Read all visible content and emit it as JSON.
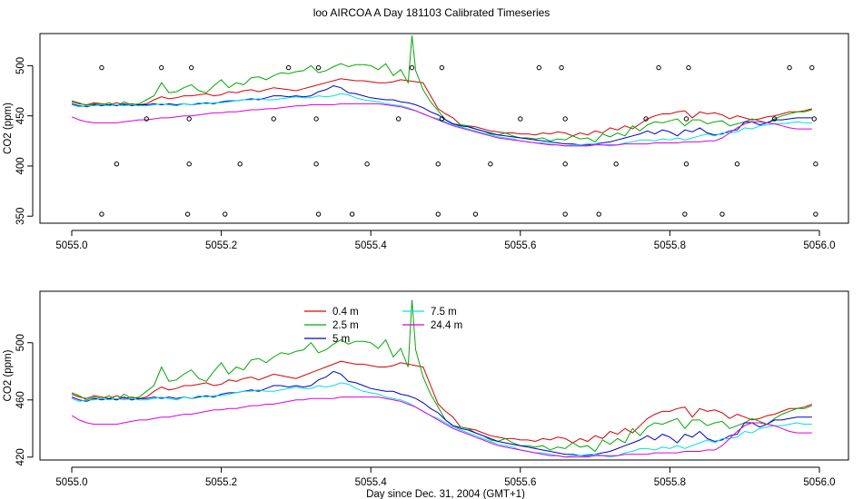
{
  "title": "loo AIRCOA A  Day 181103  Calibrated Timeseries",
  "colors": {
    "0.4 m": "#dd0000",
    "2.5 m": "#00aa00",
    "5 m": "#0000cc",
    "7.5 m": "#00e0e0",
    "24.4 m": "#dd00dd",
    "points": "#000000"
  },
  "chart_data": [
    {
      "type": "line",
      "xlabel": "Day since Dec. 31, 2004 (GMT+1)",
      "ylabel": "CO2 (ppm)",
      "xlim": [
        4999.96,
        5056.03
      ],
      "ylim": [
        343,
        532
      ],
      "xticks": [
        5055.0,
        5055.2,
        5055.4,
        5055.6,
        5055.8,
        5056.0
      ],
      "xtick_labels": [
        "5055.0",
        "5055.2",
        "5055.4",
        "5055.6",
        "5055.8",
        "5056.0"
      ],
      "yticks": [
        350,
        400,
        450,
        500
      ],
      "ytick_labels": [
        "350",
        "400",
        "450",
        "500"
      ],
      "grid": false,
      "legend": "none",
      "series_source": "shared",
      "points": {
        "x": [
          5055.04,
          5055.12,
          5055.16,
          5055.29,
          5055.33,
          5055.455,
          5055.495,
          5055.625,
          5055.655,
          5055.785,
          5055.825,
          5055.96,
          5055.99,
          5055.06,
          5055.157,
          5055.225,
          5055.327,
          5055.395,
          5055.49,
          5055.56,
          5055.66,
          5055.728,
          5055.822,
          5055.89,
          5055.995,
          5055.1,
          5055.157,
          5055.27,
          5055.327,
          5055.437,
          5055.495,
          5055.6,
          5055.66,
          5055.768,
          5055.822,
          5055.94,
          5055.993,
          5055.04,
          5055.155,
          5055.205,
          5055.33,
          5055.375,
          5055.49,
          5055.54,
          5055.66,
          5055.705,
          5055.82,
          5055.87,
          5055.995
        ],
        "y": [
          498,
          498,
          498,
          498,
          498,
          498,
          498,
          498,
          498,
          498,
          498,
          498,
          498,
          402,
          402,
          402,
          402,
          402,
          402,
          402,
          402,
          402,
          402,
          402,
          402,
          447,
          447,
          447,
          447,
          447,
          447,
          447,
          447,
          447,
          447,
          447,
          447,
          352,
          352,
          352,
          352,
          352,
          352,
          352,
          352,
          352,
          352,
          352,
          352
        ]
      }
    },
    {
      "type": "line",
      "xlabel": "Day since Dec. 31, 2004 (GMT+1)",
      "ylabel": "CO2 (ppm)",
      "xlim": [
        4999.96,
        5056.03
      ],
      "ylim": [
        418,
        536
      ],
      "xticks": [
        5055.0,
        5055.2,
        5055.4,
        5055.6,
        5055.8,
        5056.0
      ],
      "xtick_labels": [
        "5055.0",
        "5055.2",
        "5055.4",
        "5055.6",
        "5055.8",
        "5056.0"
      ],
      "yticks": [
        420,
        460,
        500
      ],
      "ytick_labels": [
        "420",
        "460",
        "500"
      ],
      "grid": false,
      "legend": "top-left",
      "series_source": "shared"
    }
  ],
  "series": [
    {
      "name": "0.4 m",
      "color": "#dd0000",
      "x": [
        5055.0,
        5055.01,
        5055.02,
        5055.03,
        5055.04,
        5055.05,
        5055.06,
        5055.07,
        5055.08,
        5055.09,
        5055.1,
        5055.11,
        5055.12,
        5055.13,
        5055.14,
        5055.15,
        5055.16,
        5055.17,
        5055.18,
        5055.19,
        5055.2,
        5055.21,
        5055.22,
        5055.23,
        5055.24,
        5055.25,
        5055.26,
        5055.27,
        5055.28,
        5055.29,
        5055.3,
        5055.31,
        5055.32,
        5055.33,
        5055.34,
        5055.35,
        5055.36,
        5055.37,
        5055.38,
        5055.39,
        5055.4,
        5055.41,
        5055.42,
        5055.43,
        5055.44,
        5055.45,
        5055.46,
        5055.47,
        5055.48,
        5055.49,
        5055.5,
        5055.51,
        5055.52,
        5055.53,
        5055.54,
        5055.55,
        5055.56,
        5055.57,
        5055.58,
        5055.59,
        5055.6,
        5055.61,
        5055.62,
        5055.63,
        5055.64,
        5055.65,
        5055.66,
        5055.67,
        5055.68,
        5055.69,
        5055.7,
        5055.71,
        5055.72,
        5055.73,
        5055.74,
        5055.75,
        5055.76,
        5055.77,
        5055.78,
        5055.79,
        5055.8,
        5055.81,
        5055.82,
        5055.83,
        5055.84,
        5055.85,
        5055.86,
        5055.87,
        5055.88,
        5055.89,
        5055.9,
        5055.91,
        5055.92,
        5055.93,
        5055.94,
        5055.95,
        5055.96,
        5055.97,
        5055.98,
        5055.99
      ],
      "y": [
        464,
        462,
        461,
        463,
        462,
        461,
        463,
        461,
        462,
        461,
        462,
        466,
        469,
        467,
        468,
        470,
        470,
        471,
        472,
        470,
        471,
        474,
        473,
        475,
        476,
        474,
        476,
        478,
        477,
        476,
        475,
        477,
        479,
        481,
        483,
        485,
        487,
        486,
        485,
        485,
        484,
        483,
        483,
        484,
        486,
        485,
        484,
        483,
        470,
        457,
        452,
        448,
        441,
        440,
        439,
        437,
        435,
        434,
        433,
        433,
        432,
        432,
        431,
        433,
        432,
        434,
        433,
        430,
        433,
        431,
        435,
        433,
        438,
        436,
        440,
        437,
        442,
        447,
        450,
        452,
        452,
        454,
        455,
        448,
        454,
        452,
        453,
        451,
        447,
        450,
        448,
        446,
        447,
        449,
        450,
        452,
        454,
        454,
        455,
        457
      ]
    },
    {
      "name": "2.5 m",
      "color": "#00aa00",
      "x": [
        5055.0,
        5055.01,
        5055.02,
        5055.03,
        5055.04,
        5055.05,
        5055.06,
        5055.07,
        5055.08,
        5055.09,
        5055.1,
        5055.11,
        5055.12,
        5055.13,
        5055.14,
        5055.15,
        5055.16,
        5055.17,
        5055.18,
        5055.19,
        5055.2,
        5055.21,
        5055.22,
        5055.23,
        5055.24,
        5055.25,
        5055.26,
        5055.27,
        5055.28,
        5055.29,
        5055.3,
        5055.31,
        5055.32,
        5055.33,
        5055.34,
        5055.35,
        5055.36,
        5055.37,
        5055.38,
        5055.39,
        5055.4,
        5055.41,
        5055.42,
        5055.43,
        5055.44,
        5055.45,
        5055.455,
        5055.46,
        5055.47,
        5055.48,
        5055.49,
        5055.5,
        5055.51,
        5055.52,
        5055.53,
        5055.54,
        5055.55,
        5055.56,
        5055.57,
        5055.58,
        5055.59,
        5055.6,
        5055.61,
        5055.62,
        5055.63,
        5055.64,
        5055.65,
        5055.66,
        5055.67,
        5055.68,
        5055.69,
        5055.7,
        5055.71,
        5055.72,
        5055.73,
        5055.74,
        5055.75,
        5055.76,
        5055.77,
        5055.78,
        5055.79,
        5055.8,
        5055.81,
        5055.82,
        5055.83,
        5055.84,
        5055.85,
        5055.86,
        5055.87,
        5055.88,
        5055.89,
        5055.9,
        5055.91,
        5055.92,
        5055.93,
        5055.94,
        5055.95,
        5055.96,
        5055.97,
        5055.98,
        5055.99
      ],
      "y": [
        465,
        463,
        460,
        462,
        461,
        463,
        460,
        464,
        461,
        462,
        466,
        470,
        483,
        473,
        474,
        478,
        481,
        475,
        473,
        480,
        486,
        478,
        483,
        481,
        488,
        489,
        486,
        490,
        493,
        492,
        494,
        495,
        500,
        493,
        495,
        499,
        502,
        499,
        501,
        501,
        500,
        496,
        502,
        490,
        496,
        483,
        530,
        495,
        476,
        464,
        455,
        446,
        442,
        441,
        440,
        437,
        435,
        432,
        431,
        433,
        430,
        428,
        428,
        427,
        428,
        425,
        427,
        426,
        430,
        427,
        428,
        424,
        432,
        429,
        433,
        430,
        440,
        435,
        441,
        444,
        443,
        445,
        447,
        440,
        446,
        446,
        442,
        444,
        445,
        440,
        442,
        444,
        447,
        445,
        443,
        447,
        450,
        452,
        454,
        454,
        456
      ]
    },
    {
      "name": "5 m",
      "color": "#0000cc",
      "x": [
        5055.0,
        5055.01,
        5055.02,
        5055.03,
        5055.04,
        5055.05,
        5055.06,
        5055.07,
        5055.08,
        5055.09,
        5055.1,
        5055.11,
        5055.12,
        5055.13,
        5055.14,
        5055.15,
        5055.16,
        5055.17,
        5055.18,
        5055.19,
        5055.2,
        5055.21,
        5055.22,
        5055.23,
        5055.24,
        5055.25,
        5055.26,
        5055.27,
        5055.28,
        5055.29,
        5055.3,
        5055.31,
        5055.32,
        5055.33,
        5055.34,
        5055.35,
        5055.36,
        5055.37,
        5055.38,
        5055.39,
        5055.4,
        5055.41,
        5055.42,
        5055.43,
        5055.44,
        5055.45,
        5055.46,
        5055.47,
        5055.48,
        5055.49,
        5055.5,
        5055.51,
        5055.52,
        5055.53,
        5055.54,
        5055.55,
        5055.56,
        5055.57,
        5055.58,
        5055.59,
        5055.6,
        5055.61,
        5055.62,
        5055.63,
        5055.64,
        5055.65,
        5055.66,
        5055.67,
        5055.68,
        5055.69,
        5055.7,
        5055.71,
        5055.72,
        5055.73,
        5055.74,
        5055.75,
        5055.76,
        5055.77,
        5055.78,
        5055.79,
        5055.8,
        5055.81,
        5055.82,
        5055.83,
        5055.84,
        5055.85,
        5055.86,
        5055.87,
        5055.88,
        5055.89,
        5055.9,
        5055.91,
        5055.92,
        5055.93,
        5055.94,
        5055.95,
        5055.96,
        5055.97,
        5055.98,
        5055.99
      ],
      "y": [
        462,
        460,
        459,
        461,
        460,
        461,
        460,
        462,
        460,
        461,
        461,
        462,
        461,
        462,
        461,
        462,
        461,
        462,
        463,
        462,
        464,
        465,
        465,
        466,
        467,
        466,
        468,
        470,
        470,
        469,
        470,
        469,
        470,
        474,
        476,
        480,
        478,
        473,
        472,
        470,
        468,
        467,
        466,
        466,
        464,
        463,
        461,
        458,
        454,
        451,
        446,
        442,
        440,
        439,
        437,
        435,
        433,
        431,
        430,
        429,
        428,
        427,
        426,
        425,
        424,
        423,
        422,
        422,
        421,
        421,
        422,
        423,
        424,
        426,
        428,
        430,
        432,
        435,
        432,
        436,
        434,
        430,
        436,
        434,
        438,
        433,
        431,
        432,
        435,
        436,
        444,
        444,
        441,
        443,
        446,
        446,
        447,
        448,
        448,
        448
      ]
    },
    {
      "name": "7.5 m",
      "color": "#00e0e0",
      "x": [
        5055.0,
        5055.01,
        5055.02,
        5055.03,
        5055.04,
        5055.05,
        5055.06,
        5055.07,
        5055.08,
        5055.09,
        5055.1,
        5055.11,
        5055.12,
        5055.13,
        5055.14,
        5055.15,
        5055.16,
        5055.17,
        5055.18,
        5055.19,
        5055.2,
        5055.21,
        5055.22,
        5055.23,
        5055.24,
        5055.25,
        5055.26,
        5055.27,
        5055.28,
        5055.29,
        5055.3,
        5055.31,
        5055.32,
        5055.33,
        5055.34,
        5055.35,
        5055.36,
        5055.37,
        5055.38,
        5055.39,
        5055.4,
        5055.41,
        5055.42,
        5055.43,
        5055.44,
        5055.45,
        5055.46,
        5055.47,
        5055.48,
        5055.49,
        5055.5,
        5055.51,
        5055.52,
        5055.53,
        5055.54,
        5055.55,
        5055.56,
        5055.57,
        5055.58,
        5055.59,
        5055.6,
        5055.61,
        5055.62,
        5055.63,
        5055.64,
        5055.65,
        5055.66,
        5055.67,
        5055.68,
        5055.69,
        5055.7,
        5055.71,
        5055.72,
        5055.73,
        5055.74,
        5055.75,
        5055.76,
        5055.77,
        5055.78,
        5055.79,
        5055.8,
        5055.81,
        5055.82,
        5055.83,
        5055.84,
        5055.85,
        5055.86,
        5055.87,
        5055.88,
        5055.89,
        5055.9,
        5055.91,
        5055.92,
        5055.93,
        5055.94,
        5055.95,
        5055.96,
        5055.97,
        5055.98,
        5055.99
      ],
      "y": [
        461,
        459,
        460,
        460,
        461,
        460,
        461,
        460,
        461,
        460,
        460,
        461,
        462,
        461,
        460,
        462,
        461,
        463,
        462,
        463,
        463,
        464,
        465,
        466,
        466,
        467,
        466,
        466,
        467,
        468,
        469,
        468,
        468,
        470,
        469,
        470,
        472,
        471,
        468,
        466,
        465,
        464,
        462,
        461,
        460,
        458,
        455,
        452,
        449,
        447,
        444,
        441,
        439,
        437,
        435,
        433,
        431,
        429,
        428,
        427,
        425,
        424,
        423,
        423,
        422,
        421,
        420,
        421,
        421,
        422,
        422,
        421,
        420,
        421,
        423,
        424,
        426,
        426,
        425,
        427,
        426,
        428,
        426,
        428,
        430,
        432,
        430,
        433,
        433,
        434,
        438,
        437,
        440,
        441,
        442,
        442,
        443,
        444,
        443,
        443
      ]
    },
    {
      "name": "24.4 m",
      "color": "#dd00dd",
      "x": [
        5055.0,
        5055.01,
        5055.02,
        5055.03,
        5055.04,
        5055.05,
        5055.06,
        5055.07,
        5055.08,
        5055.09,
        5055.1,
        5055.11,
        5055.12,
        5055.13,
        5055.14,
        5055.15,
        5055.16,
        5055.17,
        5055.18,
        5055.19,
        5055.2,
        5055.21,
        5055.22,
        5055.23,
        5055.24,
        5055.25,
        5055.26,
        5055.27,
        5055.28,
        5055.29,
        5055.3,
        5055.31,
        5055.32,
        5055.33,
        5055.34,
        5055.35,
        5055.36,
        5055.37,
        5055.38,
        5055.39,
        5055.4,
        5055.41,
        5055.42,
        5055.43,
        5055.44,
        5055.45,
        5055.46,
        5055.47,
        5055.48,
        5055.49,
        5055.5,
        5055.51,
        5055.52,
        5055.53,
        5055.54,
        5055.55,
        5055.56,
        5055.57,
        5055.58,
        5055.59,
        5055.6,
        5055.61,
        5055.62,
        5055.63,
        5055.64,
        5055.65,
        5055.66,
        5055.67,
        5055.68,
        5055.69,
        5055.7,
        5055.71,
        5055.72,
        5055.73,
        5055.74,
        5055.75,
        5055.76,
        5055.77,
        5055.78,
        5055.79,
        5055.8,
        5055.81,
        5055.82,
        5055.83,
        5055.84,
        5055.85,
        5055.86,
        5055.87,
        5055.88,
        5055.89,
        5055.9,
        5055.91,
        5055.92,
        5055.93,
        5055.94,
        5055.95,
        5055.96,
        5055.97,
        5055.98,
        5055.99
      ],
      "y": [
        449,
        446,
        444,
        443,
        443,
        443,
        443,
        444,
        445,
        446,
        446,
        447,
        448,
        448,
        449,
        450,
        450,
        451,
        452,
        453,
        453,
        454,
        454,
        455,
        456,
        456,
        457,
        457,
        458,
        459,
        460,
        460,
        461,
        461,
        461,
        461,
        462,
        462,
        462,
        462,
        462,
        462,
        461,
        460,
        459,
        457,
        455,
        452,
        449,
        446,
        443,
        440,
        438,
        436,
        434,
        432,
        430,
        428,
        427,
        426,
        425,
        424,
        423,
        422,
        421,
        421,
        420,
        420,
        420,
        420,
        421,
        421,
        421,
        421,
        422,
        422,
        422,
        422,
        423,
        423,
        423,
        423,
        424,
        424,
        424,
        425,
        425,
        428,
        433,
        438,
        442,
        444,
        444,
        443,
        442,
        440,
        438,
        437,
        437,
        437
      ]
    }
  ],
  "legend": {
    "col1": [
      {
        "label": "0.4 m",
        "color": "#dd0000"
      },
      {
        "label": "2.5 m",
        "color": "#00aa00"
      },
      {
        "label": "5 m",
        "color": "#0000cc"
      }
    ],
    "col2": [
      {
        "label": "7.5 m",
        "color": "#00e0e0"
      },
      {
        "label": "24.4 m",
        "color": "#dd00dd"
      }
    ]
  }
}
